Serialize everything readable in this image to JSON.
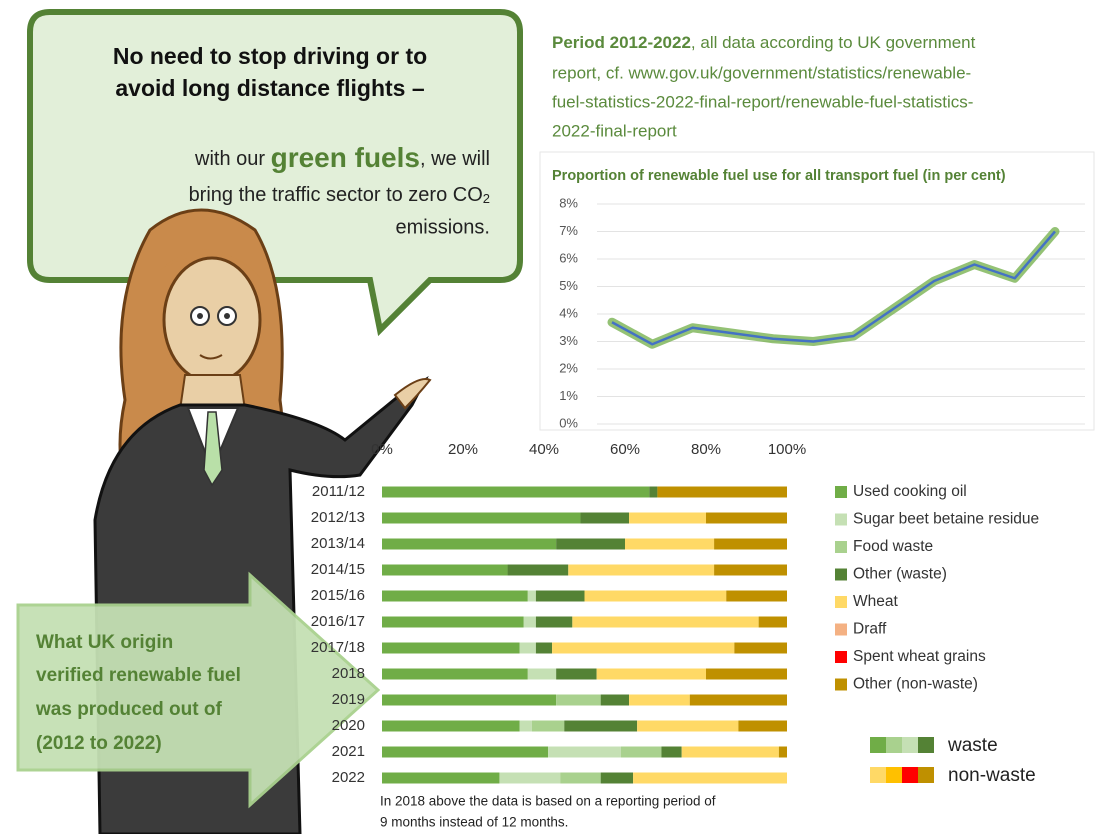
{
  "bubble": {
    "headline": [
      "No need to stop driving or to",
      "avoid long distance flights –"
    ],
    "body": {
      "pre": "with our ",
      "highlight": "green fuels",
      "post": ", we will",
      "line2": "bring the traffic sector to zero CO",
      "sub": "2",
      "line3": "emissions."
    }
  },
  "note": {
    "lead": "Period 2012-2022",
    "lines": [
      ", all data according to UK government",
      "report, cf. www.gov.uk/government/statistics/renewable-",
      "fuel-statistics-2022-final-report/renewable-fuel-statistics-",
      "2022-final-report"
    ]
  },
  "arrow_text": [
    "What UK origin",
    "verified renewable fuel",
    "was produced out of",
    "(2012 to 2022)"
  ],
  "footnote": [
    "In 2018 above the data is based on a reporting period of",
    "9 months instead of 12 months."
  ],
  "key": {
    "waste": "waste",
    "non_waste": "non-waste"
  },
  "chart_data": [
    {
      "type": "line",
      "title": "Proportion of renewable fuel use for all transport fuel (in per cent)",
      "categories": [
        null,
        null,
        null,
        null,
        null,
        null,
        null,
        null,
        null,
        null,
        null,
        null
      ],
      "values": [
        3.7,
        2.9,
        3.5,
        3.3,
        3.1,
        3.0,
        3.2,
        4.2,
        5.2,
        5.8,
        5.3,
        7.0
      ],
      "color": "#4472c4",
      "glow_color": "#70ad47",
      "ylim": [
        0,
        8
      ],
      "yticks": [
        {
          "value": 0,
          "label": "0%"
        },
        {
          "value": 1,
          "label": "1%"
        },
        {
          "value": 2,
          "label": "2%"
        },
        {
          "value": 3,
          "label": "3%"
        },
        {
          "value": 4,
          "label": "4%"
        },
        {
          "value": 5,
          "label": "5%"
        },
        {
          "value": 6,
          "label": "6%"
        },
        {
          "value": 7,
          "label": "7%"
        },
        {
          "value": 8,
          "label": "8%"
        }
      ],
      "grid": true
    },
    {
      "type": "bar",
      "orientation": "horizontal",
      "stacked": true,
      "categories": [
        "2011/12",
        "2012/13",
        "2013/14",
        "2014/15",
        "2015/16",
        "2016/17",
        "2017/18",
        "2018",
        "2019",
        "2020",
        "2021",
        "2022"
      ],
      "xlim": [
        0,
        100
      ],
      "xticks": [
        {
          "value": 0,
          "label": "0%"
        },
        {
          "value": 20,
          "label": "20%"
        },
        {
          "value": 40,
          "label": "40%"
        },
        {
          "value": 60,
          "label": "60%"
        },
        {
          "value": 80,
          "label": "80%"
        },
        {
          "value": 100,
          "label": "100%"
        }
      ],
      "series": [
        {
          "name": "Used cooking oil",
          "color": "#70ad47",
          "values": [
            66,
            49,
            43,
            31,
            36,
            35,
            34,
            36,
            43,
            34,
            41,
            29
          ]
        },
        {
          "name": "Sugar beet betaine residue",
          "color": "#c5e0b4",
          "values": [
            0,
            0,
            0,
            0,
            2,
            3,
            4,
            7,
            0,
            3,
            18,
            15
          ]
        },
        {
          "name": "Food waste",
          "color": "#a9d18e",
          "values": [
            0,
            0,
            0,
            0,
            0,
            0,
            0,
            0,
            11,
            8,
            10,
            10
          ]
        },
        {
          "name": "Other (waste)",
          "color": "#548235",
          "values": [
            2,
            12,
            17,
            15,
            12,
            9,
            4,
            10,
            7,
            18,
            5,
            8
          ]
        },
        {
          "name": "Wheat",
          "color": "#ffd966",
          "values": [
            0,
            19,
            22,
            36,
            35,
            46,
            45,
            27,
            15,
            25,
            24,
            38
          ]
        },
        {
          "name": "Draff",
          "color": "#f4b183",
          "values": [
            0,
            0,
            0,
            0,
            0,
            0,
            0,
            0,
            0,
            0,
            0,
            0
          ]
        },
        {
          "name": "Spent wheat grains",
          "color": "#ff0000",
          "values": [
            0,
            0,
            0,
            0,
            0,
            0,
            0,
            0,
            0,
            0,
            0,
            0
          ]
        },
        {
          "name": "Other (non-waste)",
          "color": "#bf9000",
          "values": [
            32,
            20,
            18,
            18,
            15,
            7,
            13,
            20,
            24,
            12,
            2,
            0
          ]
        }
      ]
    }
  ]
}
